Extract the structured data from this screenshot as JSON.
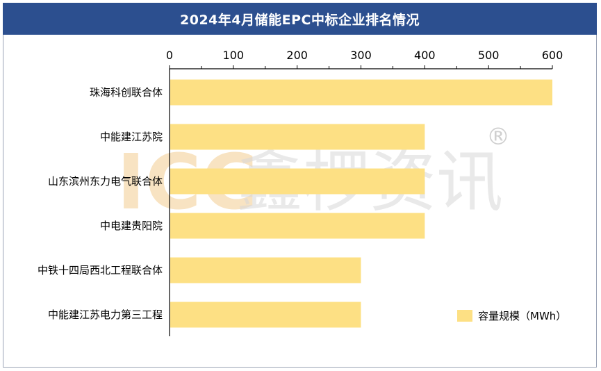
{
  "title": "2024年4月储能EPC中标企业排名情况",
  "watermark": {
    "logo": "ICC",
    "text": "鑫椤资讯",
    "mark": "®"
  },
  "colors": {
    "bar": "#fde084",
    "title_bg": "#2c4f8f",
    "axis": "#000000"
  },
  "chart_data": {
    "type": "bar",
    "orientation": "horizontal",
    "categories": [
      "珠海科创联合体",
      "中能建江苏院",
      "山东滨州东力电气联合体",
      "中电建贵阳院",
      "中铁十四局西北工程联合体",
      "中能建江苏电力第三工程"
    ],
    "series": [
      {
        "name": "容量规模（MWh）",
        "values": [
          600,
          400,
          400,
          400,
          300,
          300
        ]
      }
    ],
    "xlim": [
      0,
      600
    ],
    "xticks": [
      0,
      100,
      200,
      300,
      400,
      500,
      600
    ],
    "x_axis_position": "top",
    "grid": false,
    "legend": "bottom-right"
  }
}
